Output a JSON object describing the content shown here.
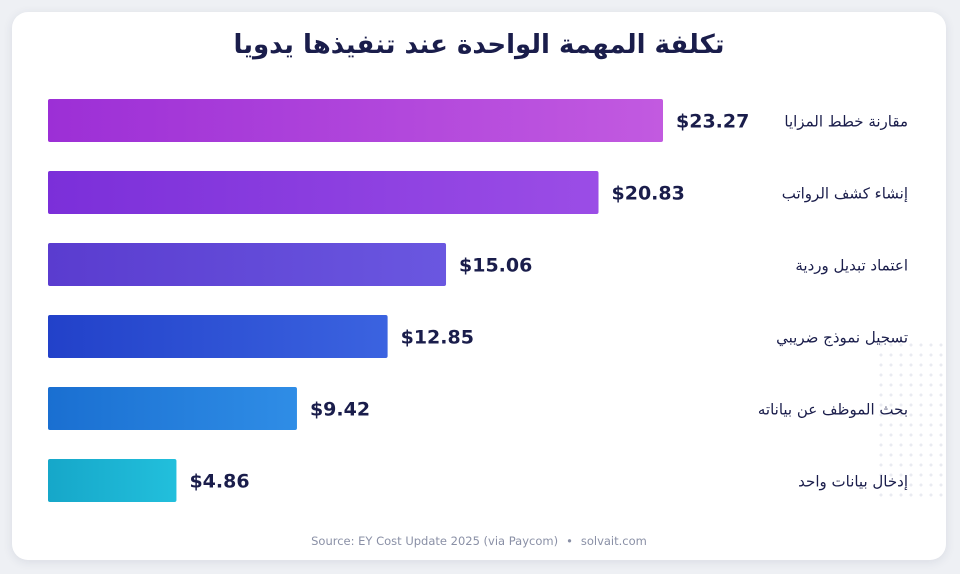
{
  "title": "تكلفة المهمة الواحدة عند تنفيذها يدويا",
  "source": {
    "text": "Source: EY Cost Update 2025 (via Paycom)",
    "separator": "•",
    "site": "solvait.com"
  },
  "colors": {
    "text_dark": "#1a1d4b",
    "bar_gradients": [
      [
        "#9c2fd6",
        "#c25ae0"
      ],
      [
        "#7b2fd9",
        "#9b4de6"
      ],
      [
        "#5a3ccf",
        "#6a57e0"
      ],
      [
        "#2241c9",
        "#3b63e0"
      ],
      [
        "#1a6fd1",
        "#2f8de6"
      ],
      [
        "#16a7c9",
        "#22bfdc"
      ]
    ]
  },
  "chart_data": {
    "type": "bar",
    "orientation": "horizontal",
    "categories": [
      "مقارنة خطط المزايا",
      "إنشاء كشف الرواتب",
      "اعتماد تبديل وردية",
      "تسجيل نموذج ضريبي",
      "بحث الموظف عن بياناته",
      "إدخال بيانات واحد"
    ],
    "values": [
      23.27,
      20.83,
      15.06,
      12.85,
      9.42,
      4.86
    ],
    "data_labels": [
      "$23.27",
      "$20.83",
      "$15.06",
      "$12.85",
      "$9.42",
      "$4.86"
    ],
    "value_prefix": "$",
    "xlim": [
      0,
      23.27
    ],
    "grid": false,
    "legend": "none"
  }
}
